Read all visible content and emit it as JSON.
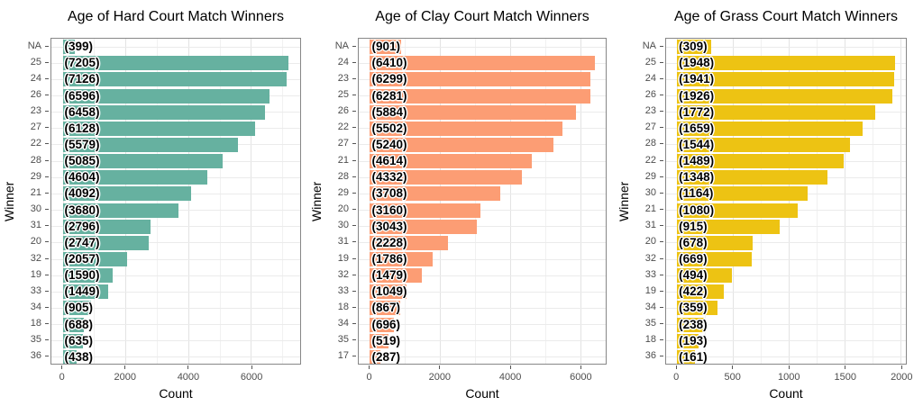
{
  "figure": {
    "background": "#ffffff",
    "grid": true,
    "legend": false
  },
  "chart_data": [
    {
      "type": "bar",
      "orientation": "horizontal",
      "title": "Age of Hard Court Match Winners",
      "xlabel": "Count",
      "ylabel": "Winner",
      "bar_color": "#66B1A0",
      "categories": [
        "NA",
        "25",
        "24",
        "26",
        "23",
        "27",
        "22",
        "28",
        "29",
        "21",
        "30",
        "31",
        "20",
        "32",
        "19",
        "33",
        "34",
        "18",
        "35",
        "36"
      ],
      "values": [
        399,
        7205,
        7126,
        6596,
        6458,
        6128,
        5579,
        5085,
        4604,
        4092,
        3680,
        2796,
        2747,
        2057,
        1590,
        1449,
        905,
        688,
        635,
        438
      ],
      "bar_labels": [
        "(399)",
        "(7205)",
        "(7126)",
        "(6596)",
        "(6458)",
        "(6128)",
        "(5579)",
        "(5085)",
        "(4604)",
        "(4092)",
        "(3680)",
        "(2796)",
        "(2747)",
        "(2057)",
        "(1590)",
        "(1449)",
        "(905)",
        "(688)",
        "(635)",
        "(438)"
      ],
      "x_ticks": [
        0,
        2000,
        4000,
        6000
      ],
      "xlim": [
        0,
        7565
      ]
    },
    {
      "type": "bar",
      "orientation": "horizontal",
      "title": "Age of Clay Court Match Winners",
      "xlabel": "Count",
      "ylabel": "Winner",
      "bar_color": "#FC9D74",
      "categories": [
        "NA",
        "24",
        "23",
        "25",
        "26",
        "22",
        "27",
        "21",
        "28",
        "29",
        "20",
        "30",
        "31",
        "19",
        "32",
        "33",
        "18",
        "34",
        "35",
        "17"
      ],
      "values": [
        901,
        6410,
        6299,
        6281,
        5884,
        5502,
        5240,
        4614,
        4332,
        3708,
        3160,
        3043,
        2228,
        1786,
        1479,
        1049,
        867,
        696,
        519,
        287
      ],
      "bar_labels": [
        "(901)",
        "(6410)",
        "(6299)",
        "(6281)",
        "(5884)",
        "(5502)",
        "(5240)",
        "(4614)",
        "(4332)",
        "(3708)",
        "(3160)",
        "(3043)",
        "(2228)",
        "(1786)",
        "(1479)",
        "(1049)",
        "(867)",
        "(696)",
        "(519)",
        "(287)"
      ],
      "x_ticks": [
        0,
        2000,
        4000,
        6000
      ],
      "xlim": [
        0,
        6731
      ]
    },
    {
      "type": "bar",
      "orientation": "horizontal",
      "title": "Age of Grass Court Match Winners",
      "xlabel": "Count",
      "ylabel": "Winner",
      "bar_color": "#EDC313",
      "categories": [
        "NA",
        "25",
        "24",
        "26",
        "23",
        "27",
        "28",
        "22",
        "29",
        "30",
        "21",
        "31",
        "20",
        "32",
        "33",
        "19",
        "34",
        "35",
        "18",
        "36"
      ],
      "values": [
        309,
        1948,
        1941,
        1926,
        1772,
        1659,
        1544,
        1489,
        1348,
        1164,
        1080,
        915,
        678,
        669,
        494,
        422,
        359,
        238,
        193,
        161
      ],
      "bar_labels": [
        "(309)",
        "(1948)",
        "(1941)",
        "(1926)",
        "(1772)",
        "(1659)",
        "(1544)",
        "(1489)",
        "(1348)",
        "(1164)",
        "(1080)",
        "(915)",
        "(678)",
        "(669)",
        "(494)",
        "(422)",
        "(359)",
        "(238)",
        "(193)",
        "(161)"
      ],
      "x_ticks": [
        0,
        500,
        1000,
        1500,
        2000
      ],
      "xlim": [
        0,
        2045
      ]
    }
  ]
}
